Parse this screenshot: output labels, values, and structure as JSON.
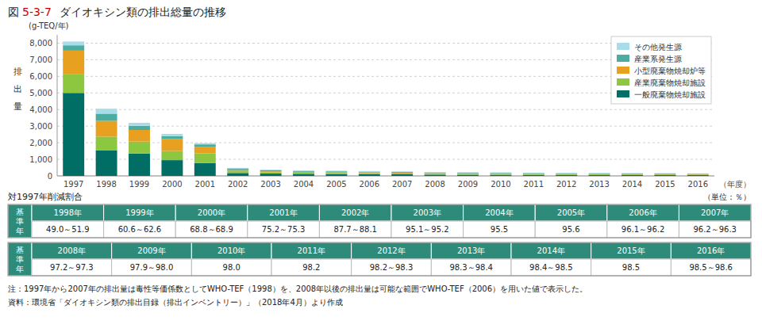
{
  "chart_data": {
    "type": "bar",
    "stacked": true,
    "title": "ダイオキシン類の排出総量の推移",
    "annotations": [
      "図",
      "5-3-7",
      "(g-TEQ/年)"
    ],
    "y_label": "排出量",
    "x_label": "（年度）",
    "categories": [
      "1997",
      "1998",
      "1999",
      "2000",
      "2001",
      "2002",
      "2003",
      "2004",
      "2005",
      "2006",
      "2007",
      "2008",
      "2009",
      "2010",
      "2011",
      "2012",
      "2013",
      "2014",
      "2015",
      "2016"
    ],
    "series": [
      {
        "name": "一般廃棄物焼却施設",
        "color": "#006E65",
        "values": [
          5000,
          1550,
          1350,
          950,
          780,
          175,
          140,
          125,
          115,
          105,
          95,
          78,
          72,
          67,
          62,
          58,
          57,
          53,
          52,
          47
        ]
      },
      {
        "name": "産業廃棄物焼却施設",
        "color": "#8DC63F",
        "values": [
          1150,
          820,
          720,
          550,
          580,
          105,
          82,
          72,
          67,
          62,
          57,
          52,
          49,
          46,
          43,
          41,
          40,
          38,
          37,
          35
        ]
      },
      {
        "name": "小型廃棄物焼却炉等",
        "color": "#E8A020",
        "values": [
          1400,
          950,
          700,
          720,
          400,
          75,
          55,
          50,
          48,
          45,
          42,
          40,
          38,
          36,
          34,
          32,
          31,
          30,
          29,
          27
        ]
      },
      {
        "name": "産業系発生源",
        "color": "#4AADA0",
        "values": [
          320,
          430,
          250,
          180,
          140,
          75,
          60,
          52,
          47,
          45,
          43,
          38,
          36,
          34,
          32,
          30,
          29,
          27,
          26,
          24
        ]
      },
      {
        "name": "その他発生源",
        "color": "#A8DCE8",
        "values": [
          230,
          300,
          180,
          130,
          70,
          55,
          45,
          40,
          38,
          36,
          34,
          32,
          30,
          28,
          26,
          25,
          24,
          23,
          22,
          20
        ]
      }
    ],
    "ylim": [
      0,
      8500
    ],
    "yticks": [
      0,
      {
        "value": 1000,
        "label": "1,000"
      },
      {
        "value": 2000,
        "label": "2,000"
      },
      {
        "value": 3000,
        "label": "3,000"
      },
      {
        "value": 4000,
        "label": "4,000"
      },
      {
        "value": 5000,
        "label": "5,000"
      },
      {
        "value": 6000,
        "label": "6,000"
      },
      {
        "value": 7000,
        "label": "7,000"
      },
      {
        "value": 8000,
        "label": "8,000"
      }
    ],
    "grid": true,
    "legend": "upper right",
    "table_title": "対1997年削減割合",
    "table_unit": "（単位：％）",
    "table_row_label": "基\n準\n年",
    "table_color": "#2E8B7A",
    "tables": [
      {
        "columns": [
          "1998年",
          "1999年",
          "2000年",
          "2001年",
          "2002年",
          "2003年",
          "2004年",
          "2005年",
          "2006年",
          "2007年"
        ],
        "cells": [
          "49.0～51.9",
          "60.6～62.6",
          "68.8～68.9",
          "75.2～75.3",
          "87.7～88.1",
          "95.1～95.2",
          "95.5",
          "95.6",
          "96.1～96.2",
          "96.2～96.3"
        ]
      },
      {
        "columns": [
          "2008年",
          "2009年",
          "2010年",
          "2011年",
          "2012年",
          "2013年",
          "2014年",
          "2015年",
          "2016年"
        ],
        "cells": [
          "97.2～97.3",
          "97.9～98.0",
          "98.0",
          "98.2",
          "98.2～98.3",
          "98.3～98.4",
          "98.4～98.5",
          "98.5",
          "98.5～98.6"
        ]
      }
    ],
    "notes": [
      "注：1997年から2007年の排出量は毒性等価係数としてWHO-TEF（1998）を、2008年以後の排出量は可能な範囲でWHO-TEF（2006）を用いた値で表示した。",
      "資料：環境省「ダイオキシン類の排出目録（排出インベントリー）」（2018年4月）より作成"
    ]
  }
}
